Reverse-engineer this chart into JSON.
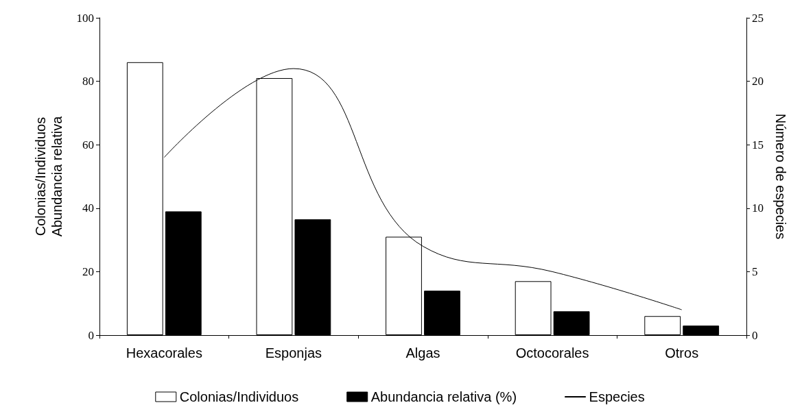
{
  "chart_data": {
    "type": "bar",
    "categories": [
      "Hexacorales",
      "Esponjas",
      "Algas",
      "Octocorales",
      "Otros"
    ],
    "ylabel": "Colonias/Individuos\nAbundancia relativa",
    "y2label": "Número de especies",
    "ylim": [
      0,
      100
    ],
    "yticks": [
      0,
      20,
      40,
      60,
      80,
      100
    ],
    "y2lim": [
      0,
      25
    ],
    "y2ticks": [
      0,
      5,
      10,
      15,
      20,
      25
    ],
    "series": [
      {
        "name": "Colonias/Individuos",
        "color": "#ffffff",
        "values": [
          86,
          81,
          31,
          17,
          6
        ]
      },
      {
        "name": "Abundancia relativa (%)",
        "color": "#000000",
        "values": [
          39,
          36.5,
          14,
          7.5,
          3
        ]
      },
      {
        "name": "Especies",
        "type": "line",
        "axis": "y2",
        "color": "#000000",
        "values": [
          14,
          21,
          7,
          5,
          2
        ]
      }
    ],
    "legend": "bottom",
    "grid": false,
    "marker": "none",
    "line_style": "solid"
  }
}
